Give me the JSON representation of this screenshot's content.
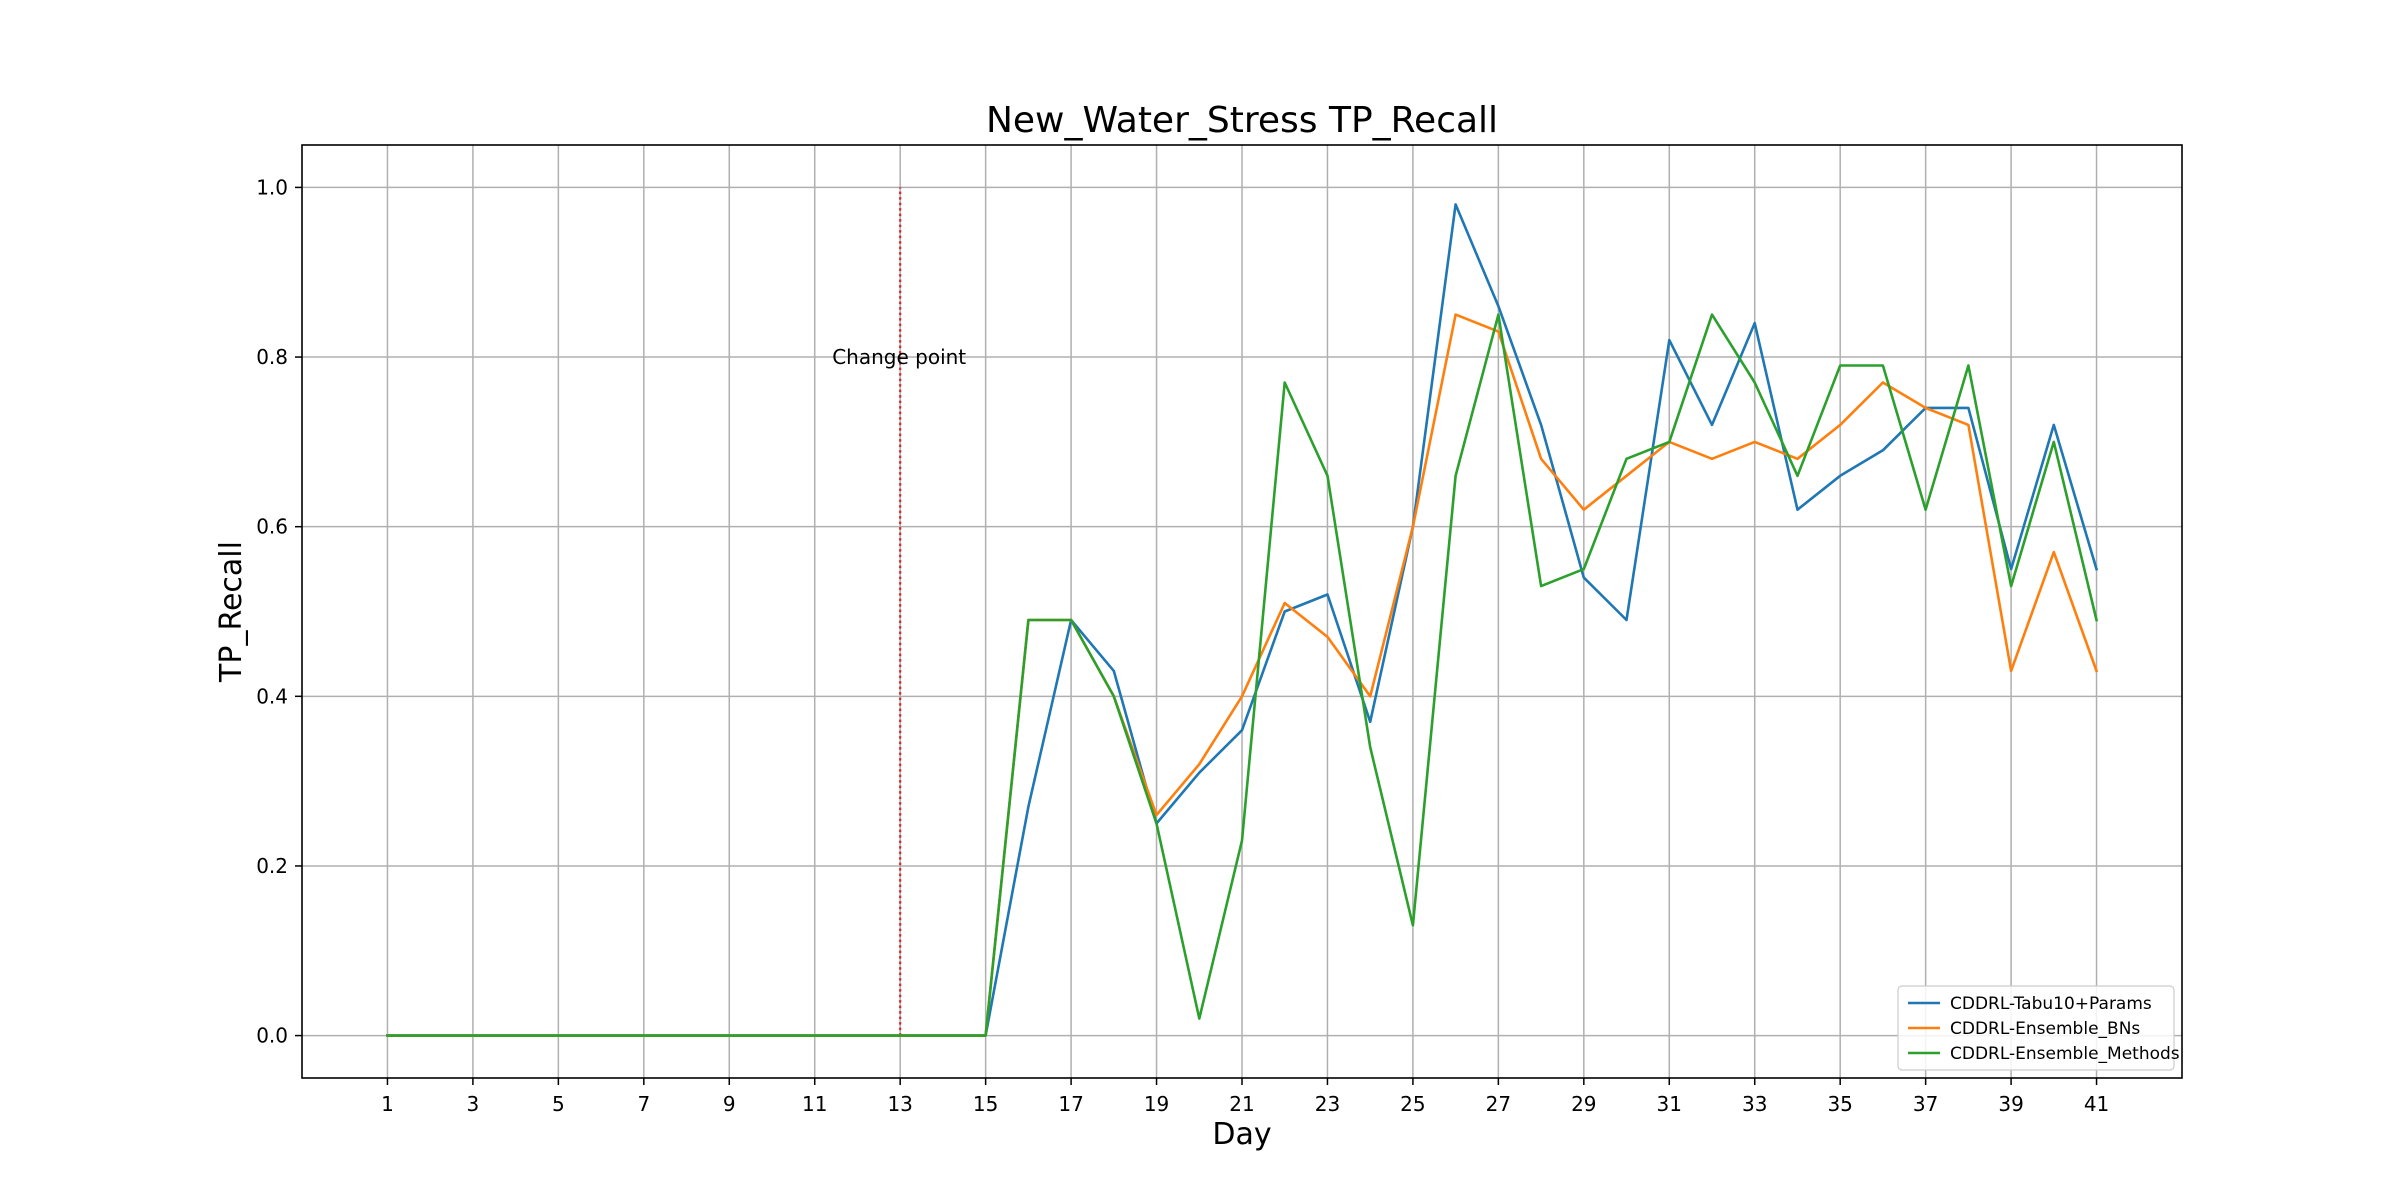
{
  "chart_data": {
    "type": "line",
    "title": "New_Water_Stress TP_Recall",
    "xlabel": "Day",
    "ylabel": "TP_Recall",
    "xlim": [
      -1,
      43
    ],
    "ylim": [
      -0.05,
      1.05
    ],
    "x_ticks": [
      "1",
      "3",
      "5",
      "7",
      "9",
      "11",
      "13",
      "15",
      "17",
      "19",
      "21",
      "23",
      "25",
      "27",
      "29",
      "31",
      "33",
      "35",
      "37",
      "39",
      "41"
    ],
    "y_ticks": [
      "0.0",
      "0.2",
      "0.4",
      "0.6",
      "0.8",
      "1.0"
    ],
    "grid": true,
    "legend_position": "lower-right",
    "x": [
      1,
      2,
      3,
      4,
      5,
      6,
      7,
      8,
      9,
      10,
      11,
      12,
      13,
      14,
      15,
      16,
      17,
      18,
      19,
      20,
      21,
      22,
      23,
      24,
      25,
      26,
      27,
      28,
      29,
      30,
      31,
      32,
      33,
      34,
      35,
      36,
      37,
      38,
      39,
      40,
      41
    ],
    "series": [
      {
        "name": "CDDRL-Tabu10+Params",
        "color": "#1f77b4",
        "values": [
          0,
          0,
          0,
          0,
          0,
          0,
          0,
          0,
          0,
          0,
          0,
          0,
          0,
          0,
          0,
          0.27,
          0.49,
          0.43,
          0.25,
          0.31,
          0.36,
          0.5,
          0.52,
          0.37,
          0.6,
          0.98,
          0.86,
          0.72,
          0.54,
          0.49,
          0.82,
          0.72,
          0.84,
          0.62,
          0.66,
          0.69,
          0.74,
          0.74,
          0.55,
          0.72,
          0.55
        ]
      },
      {
        "name": "CDDRL-Ensemble_BNs",
        "color": "#ff7f0e",
        "values": [
          0,
          0,
          0,
          0,
          0,
          0,
          0,
          0,
          0,
          0,
          0,
          0,
          0,
          0,
          0,
          0.49,
          0.49,
          0.4,
          0.26,
          0.32,
          0.4,
          0.51,
          0.47,
          0.4,
          0.6,
          0.85,
          0.83,
          0.68,
          0.62,
          0.66,
          0.7,
          0.68,
          0.7,
          0.68,
          0.72,
          0.77,
          0.74,
          0.72,
          0.43,
          0.57,
          0.43
        ]
      },
      {
        "name": "CDDRL-Ensemble_Methods",
        "color": "#2ca02c",
        "values": [
          0,
          0,
          0,
          0,
          0,
          0,
          0,
          0,
          0,
          0,
          0,
          0,
          0,
          0,
          0,
          0.49,
          0.49,
          0.4,
          0.25,
          0.02,
          0.23,
          0.77,
          0.66,
          0.34,
          0.13,
          0.66,
          0.85,
          0.53,
          0.55,
          0.68,
          0.7,
          0.85,
          0.77,
          0.66,
          0.79,
          0.79,
          0.62,
          0.79,
          0.53,
          0.7,
          0.49
        ]
      }
    ],
    "annotations": [
      {
        "type": "vline",
        "x": 13,
        "y_from": 0,
        "y_to": 1.0,
        "color": "#d62728",
        "style": "dotted"
      },
      {
        "type": "text",
        "text": "Change point",
        "x": 13,
        "y": 0.8
      }
    ]
  }
}
